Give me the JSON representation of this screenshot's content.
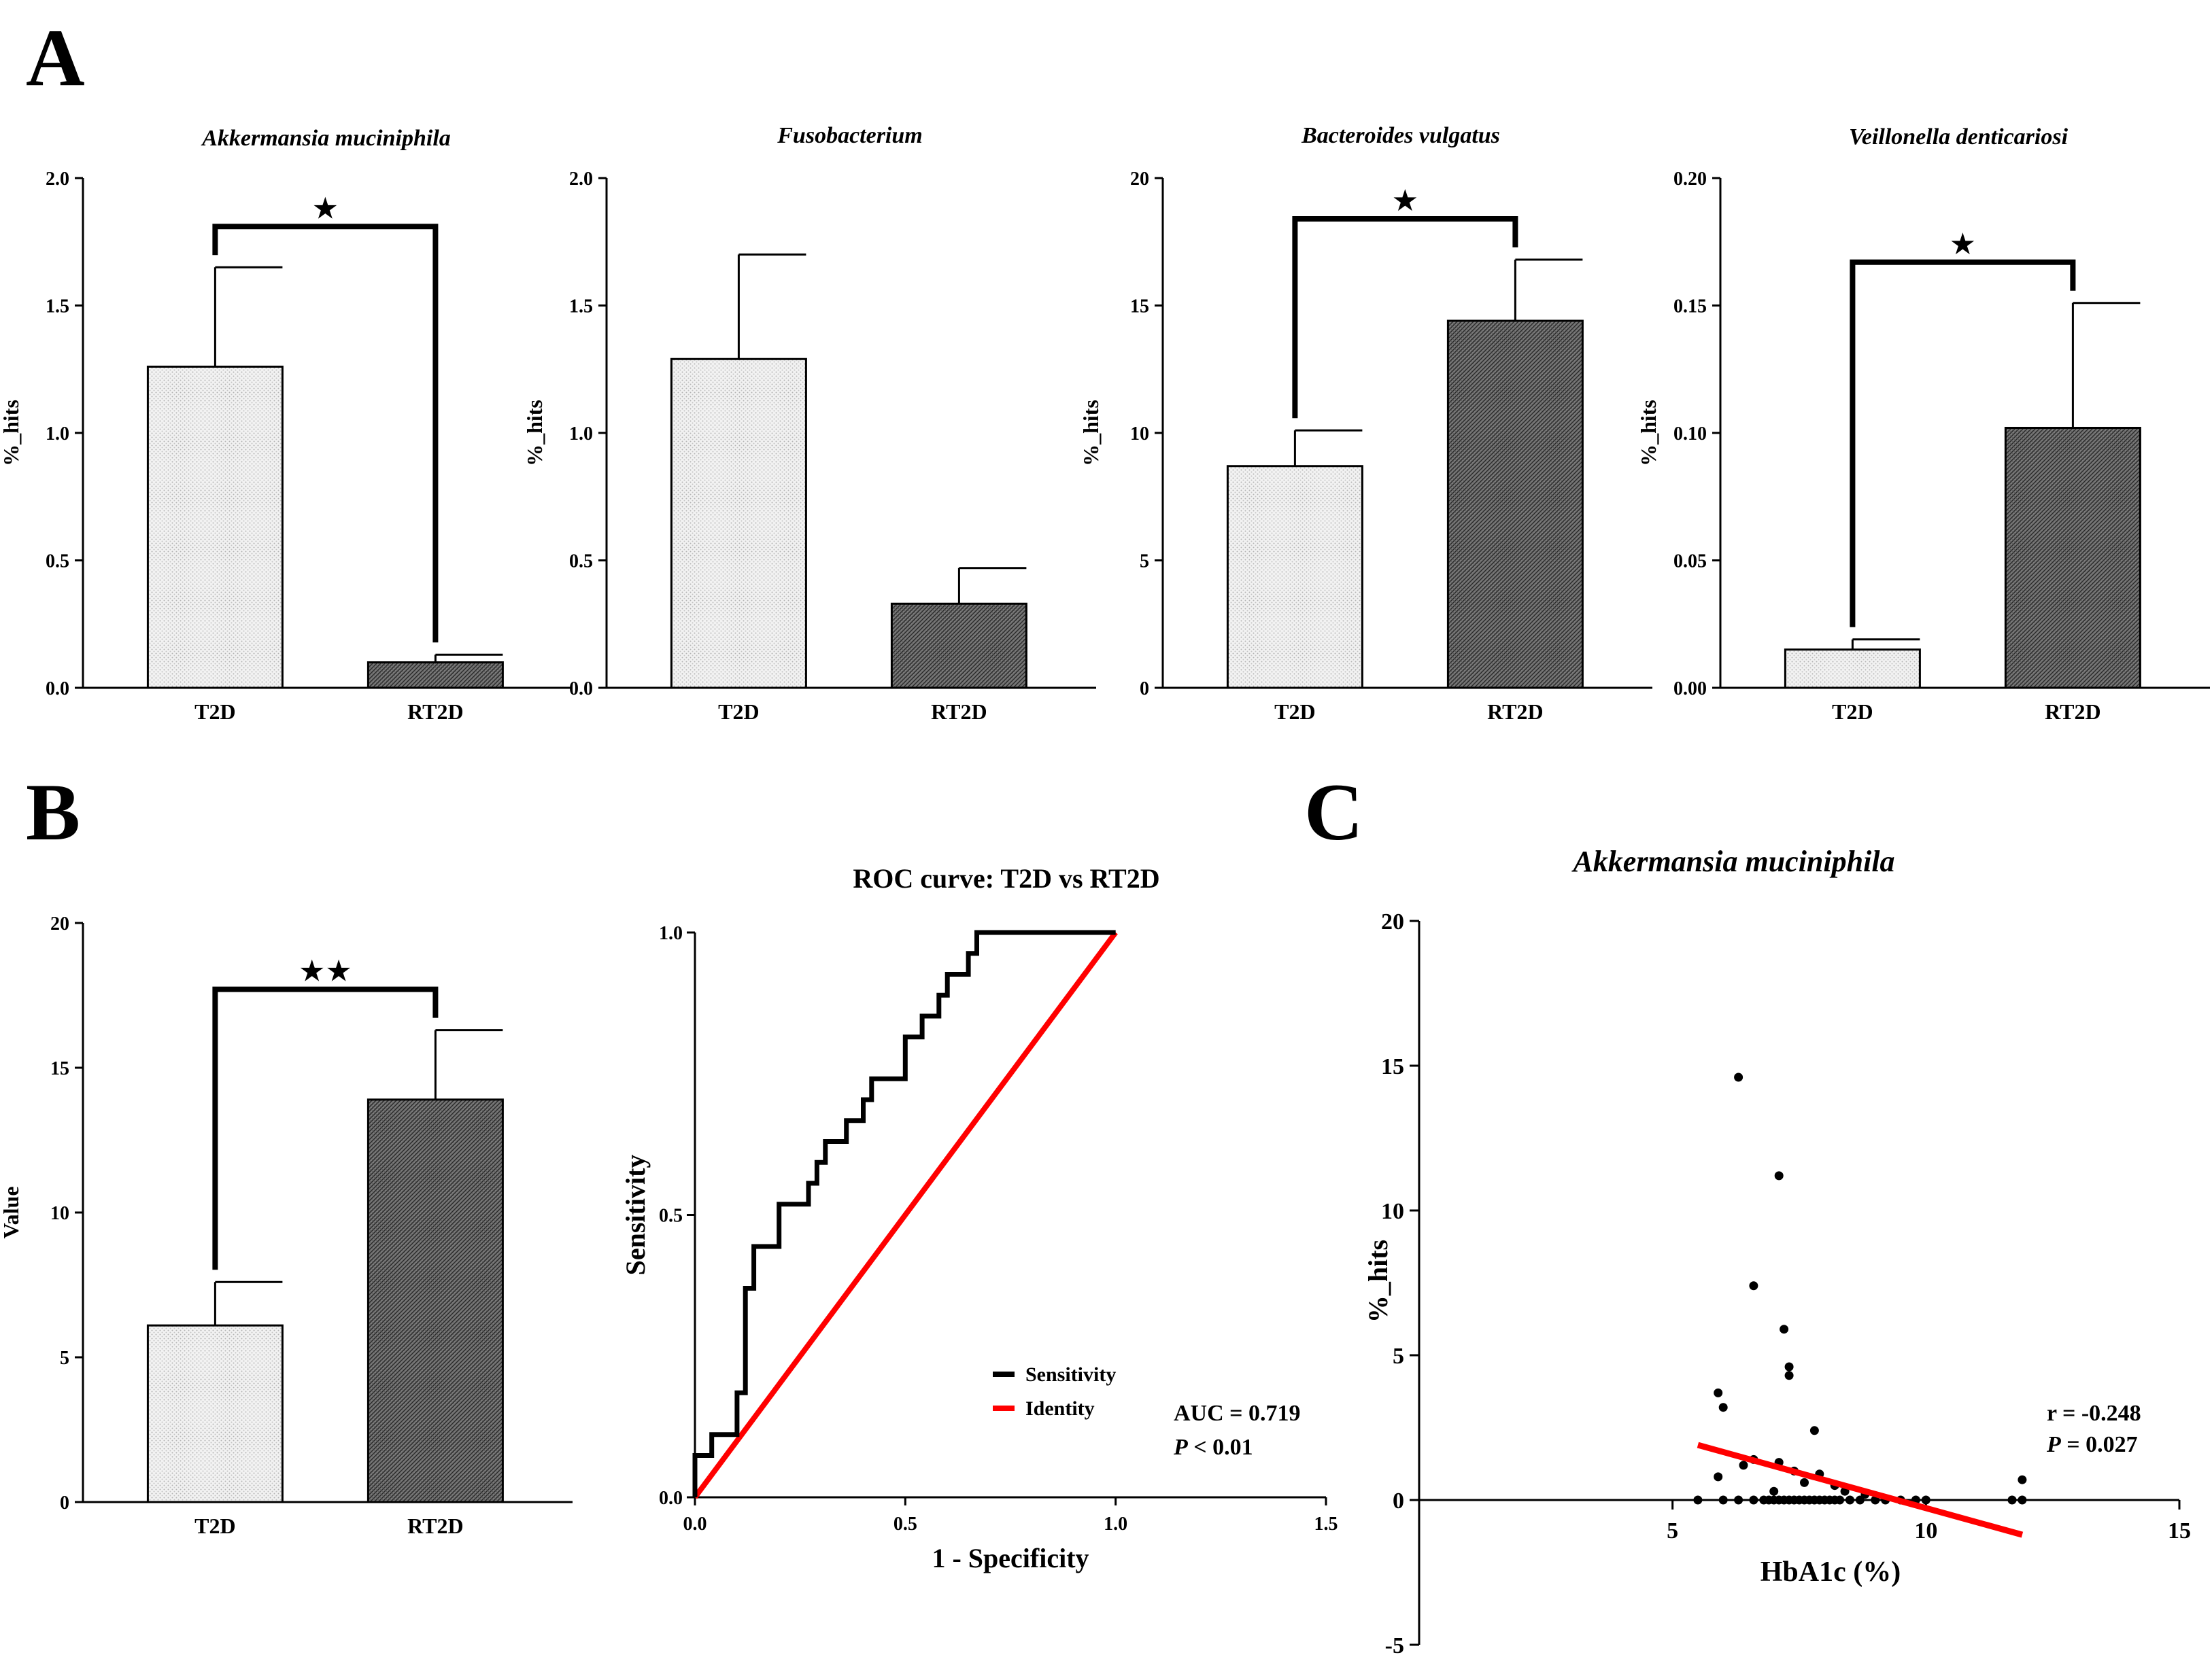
{
  "panel_labels": [
    "A",
    "B",
    "C"
  ],
  "chart_data": [
    {
      "id": "a1",
      "type": "bar",
      "title": "Akkermansia muciniphila",
      "ylabel": "%_hits",
      "categories": [
        "T2D",
        "RT2D"
      ],
      "values": [
        1.26,
        0.1
      ],
      "errors": [
        0.39,
        0.03
      ],
      "ylim": [
        0,
        2.0
      ],
      "yticks": [
        "0.0",
        "0.5",
        "1.0",
        "1.5",
        "2.0"
      ],
      "significance": "★"
    },
    {
      "id": "a2",
      "type": "bar",
      "title": "Fusobacterium",
      "ylabel": "%_hits",
      "categories": [
        "T2D",
        "RT2D"
      ],
      "values": [
        1.29,
        0.33
      ],
      "errors": [
        0.41,
        0.14
      ],
      "ylim": [
        0,
        2.0
      ],
      "yticks": [
        "0.0",
        "0.5",
        "1.0",
        "1.5",
        "2.0"
      ],
      "significance": ""
    },
    {
      "id": "a3",
      "type": "bar",
      "title": "Bacteroides vulgatus",
      "ylabel": "%_hits",
      "categories": [
        "T2D",
        "RT2D"
      ],
      "values": [
        8.7,
        14.4
      ],
      "errors": [
        1.4,
        2.4
      ],
      "ylim": [
        0,
        20
      ],
      "yticks": [
        "0",
        "5",
        "10",
        "15",
        "20"
      ],
      "significance": "★"
    },
    {
      "id": "a4",
      "type": "bar",
      "title": "Veillonella denticariosi",
      "ylabel": "%_hits",
      "categories": [
        "T2D",
        "RT2D"
      ],
      "values": [
        0.015,
        0.102
      ],
      "errors": [
        0.004,
        0.049
      ],
      "ylim": [
        0,
        0.2
      ],
      "yticks": [
        "0.00",
        "0.05",
        "0.10",
        "0.15",
        "0.20"
      ],
      "significance": "★"
    },
    {
      "id": "b1",
      "type": "bar",
      "title": "",
      "ylabel": "Value",
      "categories": [
        "T2D",
        "RT2D"
      ],
      "values": [
        6.1,
        13.9
      ],
      "errors": [
        1.5,
        2.4
      ],
      "ylim": [
        0,
        20
      ],
      "yticks": [
        "0",
        "5",
        "10",
        "15",
        "20"
      ],
      "significance": "★★"
    },
    {
      "id": "b2",
      "type": "line",
      "title": "ROC curve: T2D vs RT2D",
      "xlabel": "1 - Specificity",
      "ylabel": "Sensitivity",
      "xlim": [
        0,
        1.5
      ],
      "ylim": [
        0,
        1.0
      ],
      "xticks": [
        "0.0",
        "0.5",
        "1.0",
        "1.5"
      ],
      "yticks": [
        "0.0",
        "0.5",
        "1.0"
      ],
      "series": [
        {
          "name": "Sensitivity",
          "color": "#000000",
          "points": [
            [
              0,
              0
            ],
            [
              0,
              0.074
            ],
            [
              0.04,
              0.074
            ],
            [
              0.04,
              0.111
            ],
            [
              0.1,
              0.111
            ],
            [
              0.1,
              0.185
            ],
            [
              0.12,
              0.185
            ],
            [
              0.12,
              0.37
            ],
            [
              0.14,
              0.37
            ],
            [
              0.14,
              0.444
            ],
            [
              0.2,
              0.444
            ],
            [
              0.2,
              0.519
            ],
            [
              0.27,
              0.519
            ],
            [
              0.27,
              0.556
            ],
            [
              0.29,
              0.556
            ],
            [
              0.29,
              0.593
            ],
            [
              0.31,
              0.593
            ],
            [
              0.31,
              0.63
            ],
            [
              0.36,
              0.63
            ],
            [
              0.36,
              0.667
            ],
            [
              0.4,
              0.667
            ],
            [
              0.4,
              0.704
            ],
            [
              0.42,
              0.704
            ],
            [
              0.42,
              0.741
            ],
            [
              0.5,
              0.741
            ],
            [
              0.5,
              0.815
            ],
            [
              0.54,
              0.815
            ],
            [
              0.54,
              0.852
            ],
            [
              0.58,
              0.852
            ],
            [
              0.58,
              0.889
            ],
            [
              0.6,
              0.889
            ],
            [
              0.6,
              0.926
            ],
            [
              0.65,
              0.926
            ],
            [
              0.65,
              0.963
            ],
            [
              0.67,
              0.963
            ],
            [
              0.67,
              1.0
            ],
            [
              1.0,
              1.0
            ]
          ]
        },
        {
          "name": "Identity",
          "color": "#ff0000",
          "points": [
            [
              0,
              0
            ],
            [
              1,
              1
            ]
          ]
        }
      ],
      "annotation": {
        "auc": "AUC = 0.719",
        "p_label": "P",
        "p_value": " < 0.01"
      }
    },
    {
      "id": "c1",
      "type": "scatter",
      "title": "Akkermansia muciniphila",
      "xlabel": "HbA1c (%)",
      "ylabel": "%_hits",
      "xlim": [
        0,
        15
      ],
      "ylim": [
        -5,
        20
      ],
      "xticks": [
        "5",
        "10",
        "15"
      ],
      "yticks": [
        "-5",
        "0",
        "5",
        "10",
        "15",
        "20"
      ],
      "points": [
        [
          6.3,
          14.6
        ],
        [
          7.1,
          11.2
        ],
        [
          6.6,
          7.4
        ],
        [
          7.2,
          5.9
        ],
        [
          7.3,
          4.6
        ],
        [
          7.3,
          4.3
        ],
        [
          5.9,
          3.7
        ],
        [
          6.0,
          3.2
        ],
        [
          7.8,
          2.4
        ],
        [
          5.9,
          0.8
        ],
        [
          6.6,
          1.4
        ],
        [
          7.1,
          1.3
        ],
        [
          7.4,
          1.0
        ],
        [
          7.9,
          0.9
        ],
        [
          6.4,
          1.2
        ],
        [
          7.6,
          0.6
        ],
        [
          8.2,
          0.5
        ],
        [
          8.4,
          0.3
        ],
        [
          8.8,
          0.2
        ],
        [
          7.0,
          0.3
        ],
        [
          5.5,
          0
        ],
        [
          6.0,
          0
        ],
        [
          6.3,
          0
        ],
        [
          6.6,
          0
        ],
        [
          6.8,
          0
        ],
        [
          6.9,
          0
        ],
        [
          7.0,
          0
        ],
        [
          7.1,
          0
        ],
        [
          7.2,
          0
        ],
        [
          7.3,
          0
        ],
        [
          7.4,
          0
        ],
        [
          7.5,
          0
        ],
        [
          7.6,
          0
        ],
        [
          7.7,
          0
        ],
        [
          7.8,
          0
        ],
        [
          7.9,
          0
        ],
        [
          8.0,
          0
        ],
        [
          8.1,
          0
        ],
        [
          8.2,
          0
        ],
        [
          8.3,
          0
        ],
        [
          8.5,
          0
        ],
        [
          8.7,
          0
        ],
        [
          9.0,
          0
        ],
        [
          9.2,
          0
        ],
        [
          9.5,
          0
        ],
        [
          9.8,
          0
        ],
        [
          10.0,
          0
        ],
        [
          11.7,
          0
        ],
        [
          11.9,
          0
        ],
        [
          11.9,
          0.7
        ]
      ],
      "fit": {
        "x": [
          5.5,
          11.9
        ],
        "y": [
          1.9,
          -1.2
        ],
        "color": "#ff0000"
      },
      "annotation": {
        "r": "r = -0.248",
        "p_label": "P",
        "p_value": " = 0.027"
      }
    }
  ]
}
